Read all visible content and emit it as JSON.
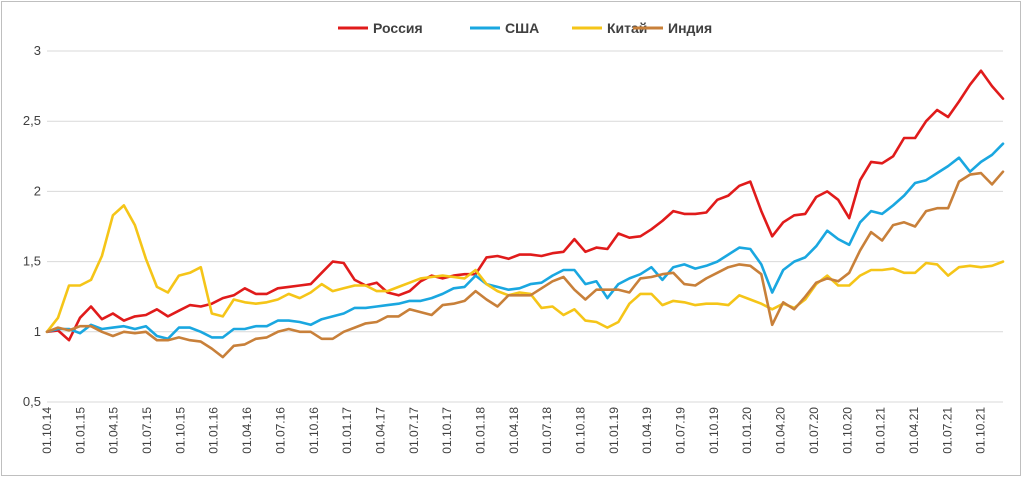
{
  "chart_data": {
    "type": "line",
    "title": "",
    "xlabel": "",
    "ylabel": "",
    "ylim": [
      0.5,
      3
    ],
    "y_ticks": [
      "0,5",
      "1",
      "1,5",
      "2",
      "2,5",
      "3"
    ],
    "y_tick_values": [
      0.5,
      1,
      1.5,
      2,
      2.5,
      3
    ],
    "grid": "horizontal",
    "legend_position": "top",
    "x_tick_labels": [
      "01.10.14",
      "01.01.15",
      "01.04.15",
      "01.07.15",
      "01.10.15",
      "01.01.16",
      "01.04.16",
      "01.07.16",
      "01.10.16",
      "01.01.17",
      "01.04.17",
      "01.07.17",
      "01.10.17",
      "01.01.18",
      "01.04.18",
      "01.07.18",
      "01.10.18",
      "01.01.19",
      "01.04.19",
      "01.07.19",
      "01.10.19",
      "01.01.20",
      "01.04.20",
      "01.07.20",
      "01.10.20",
      "01.01.21",
      "01.04.21",
      "01.07.21",
      "01.10.21"
    ],
    "series": [
      {
        "name": "Россия",
        "color": "#e01b1b",
        "values": [
          1.0,
          1.01,
          0.94,
          1.1,
          1.18,
          1.09,
          1.13,
          1.08,
          1.11,
          1.12,
          1.16,
          1.11,
          1.15,
          1.19,
          1.18,
          1.2,
          1.24,
          1.26,
          1.31,
          1.27,
          1.27,
          1.31,
          1.32,
          1.33,
          1.34,
          1.42,
          1.5,
          1.49,
          1.37,
          1.33,
          1.35,
          1.28,
          1.26,
          1.29,
          1.36,
          1.4,
          1.38,
          1.4,
          1.41,
          1.41,
          1.53,
          1.54,
          1.52,
          1.55,
          1.55,
          1.54,
          1.56,
          1.57,
          1.66,
          1.57,
          1.6,
          1.59,
          1.7,
          1.67,
          1.68,
          1.73,
          1.79,
          1.86,
          1.84,
          1.84,
          1.85,
          1.94,
          1.97,
          2.04,
          2.07,
          1.86,
          1.68,
          1.78,
          1.83,
          1.84,
          1.96,
          2.0,
          1.94,
          1.81,
          2.08,
          2.21,
          2.2,
          2.25,
          2.38,
          2.38,
          2.5,
          2.58,
          2.53,
          2.64,
          2.76,
          2.86,
          2.75,
          2.66
        ]
      },
      {
        "name": "США",
        "color": "#1aa7e0",
        "values": [
          1.0,
          1.02,
          1.02,
          0.99,
          1.05,
          1.02,
          1.03,
          1.04,
          1.02,
          1.04,
          0.97,
          0.95,
          1.03,
          1.03,
          1.0,
          0.96,
          0.96,
          1.02,
          1.02,
          1.04,
          1.04,
          1.08,
          1.08,
          1.07,
          1.05,
          1.09,
          1.11,
          1.13,
          1.17,
          1.17,
          1.18,
          1.19,
          1.2,
          1.22,
          1.22,
          1.24,
          1.27,
          1.31,
          1.32,
          1.4,
          1.34,
          1.32,
          1.3,
          1.31,
          1.34,
          1.35,
          1.4,
          1.44,
          1.44,
          1.34,
          1.36,
          1.24,
          1.34,
          1.38,
          1.41,
          1.46,
          1.37,
          1.46,
          1.48,
          1.45,
          1.47,
          1.5,
          1.55,
          1.6,
          1.59,
          1.48,
          1.28,
          1.44,
          1.5,
          1.53,
          1.61,
          1.72,
          1.66,
          1.62,
          1.78,
          1.86,
          1.84,
          1.9,
          1.97,
          2.06,
          2.08,
          2.13,
          2.18,
          2.24,
          2.14,
          2.21,
          2.26,
          2.34
        ]
      },
      {
        "name": "Китай",
        "color": "#f5c518",
        "values": [
          1.0,
          1.1,
          1.33,
          1.33,
          1.37,
          1.54,
          1.83,
          1.9,
          1.76,
          1.52,
          1.32,
          1.28,
          1.4,
          1.42,
          1.46,
          1.13,
          1.11,
          1.23,
          1.21,
          1.2,
          1.21,
          1.23,
          1.27,
          1.24,
          1.28,
          1.34,
          1.29,
          1.31,
          1.33,
          1.33,
          1.29,
          1.29,
          1.32,
          1.35,
          1.38,
          1.39,
          1.4,
          1.39,
          1.38,
          1.44,
          1.34,
          1.29,
          1.26,
          1.28,
          1.27,
          1.17,
          1.18,
          1.12,
          1.16,
          1.08,
          1.07,
          1.03,
          1.07,
          1.2,
          1.27,
          1.27,
          1.19,
          1.22,
          1.21,
          1.19,
          1.2,
          1.2,
          1.19,
          1.26,
          1.23,
          1.2,
          1.16,
          1.2,
          1.17,
          1.23,
          1.34,
          1.4,
          1.33,
          1.33,
          1.4,
          1.44,
          1.44,
          1.45,
          1.42,
          1.42,
          1.49,
          1.48,
          1.4,
          1.46,
          1.47,
          1.46,
          1.47,
          1.5
        ]
      },
      {
        "name": "Индия",
        "color": "#c8803a",
        "values": [
          1.0,
          1.03,
          1.01,
          1.04,
          1.04,
          1.0,
          0.97,
          1.0,
          0.99,
          1.0,
          0.94,
          0.94,
          0.96,
          0.94,
          0.93,
          0.88,
          0.82,
          0.9,
          0.91,
          0.95,
          0.96,
          1.0,
          1.02,
          1.0,
          1.0,
          0.95,
          0.95,
          1.0,
          1.03,
          1.06,
          1.07,
          1.11,
          1.11,
          1.16,
          1.14,
          1.12,
          1.19,
          1.2,
          1.22,
          1.29,
          1.23,
          1.18,
          1.26,
          1.26,
          1.26,
          1.31,
          1.36,
          1.39,
          1.3,
          1.23,
          1.3,
          1.3,
          1.3,
          1.28,
          1.38,
          1.39,
          1.41,
          1.42,
          1.34,
          1.33,
          1.38,
          1.42,
          1.46,
          1.48,
          1.47,
          1.41,
          1.05,
          1.21,
          1.16,
          1.25,
          1.35,
          1.38,
          1.36,
          1.42,
          1.58,
          1.71,
          1.65,
          1.76,
          1.78,
          1.75,
          1.86,
          1.88,
          1.88,
          2.07,
          2.12,
          2.13,
          2.05,
          2.14
        ]
      }
    ]
  }
}
